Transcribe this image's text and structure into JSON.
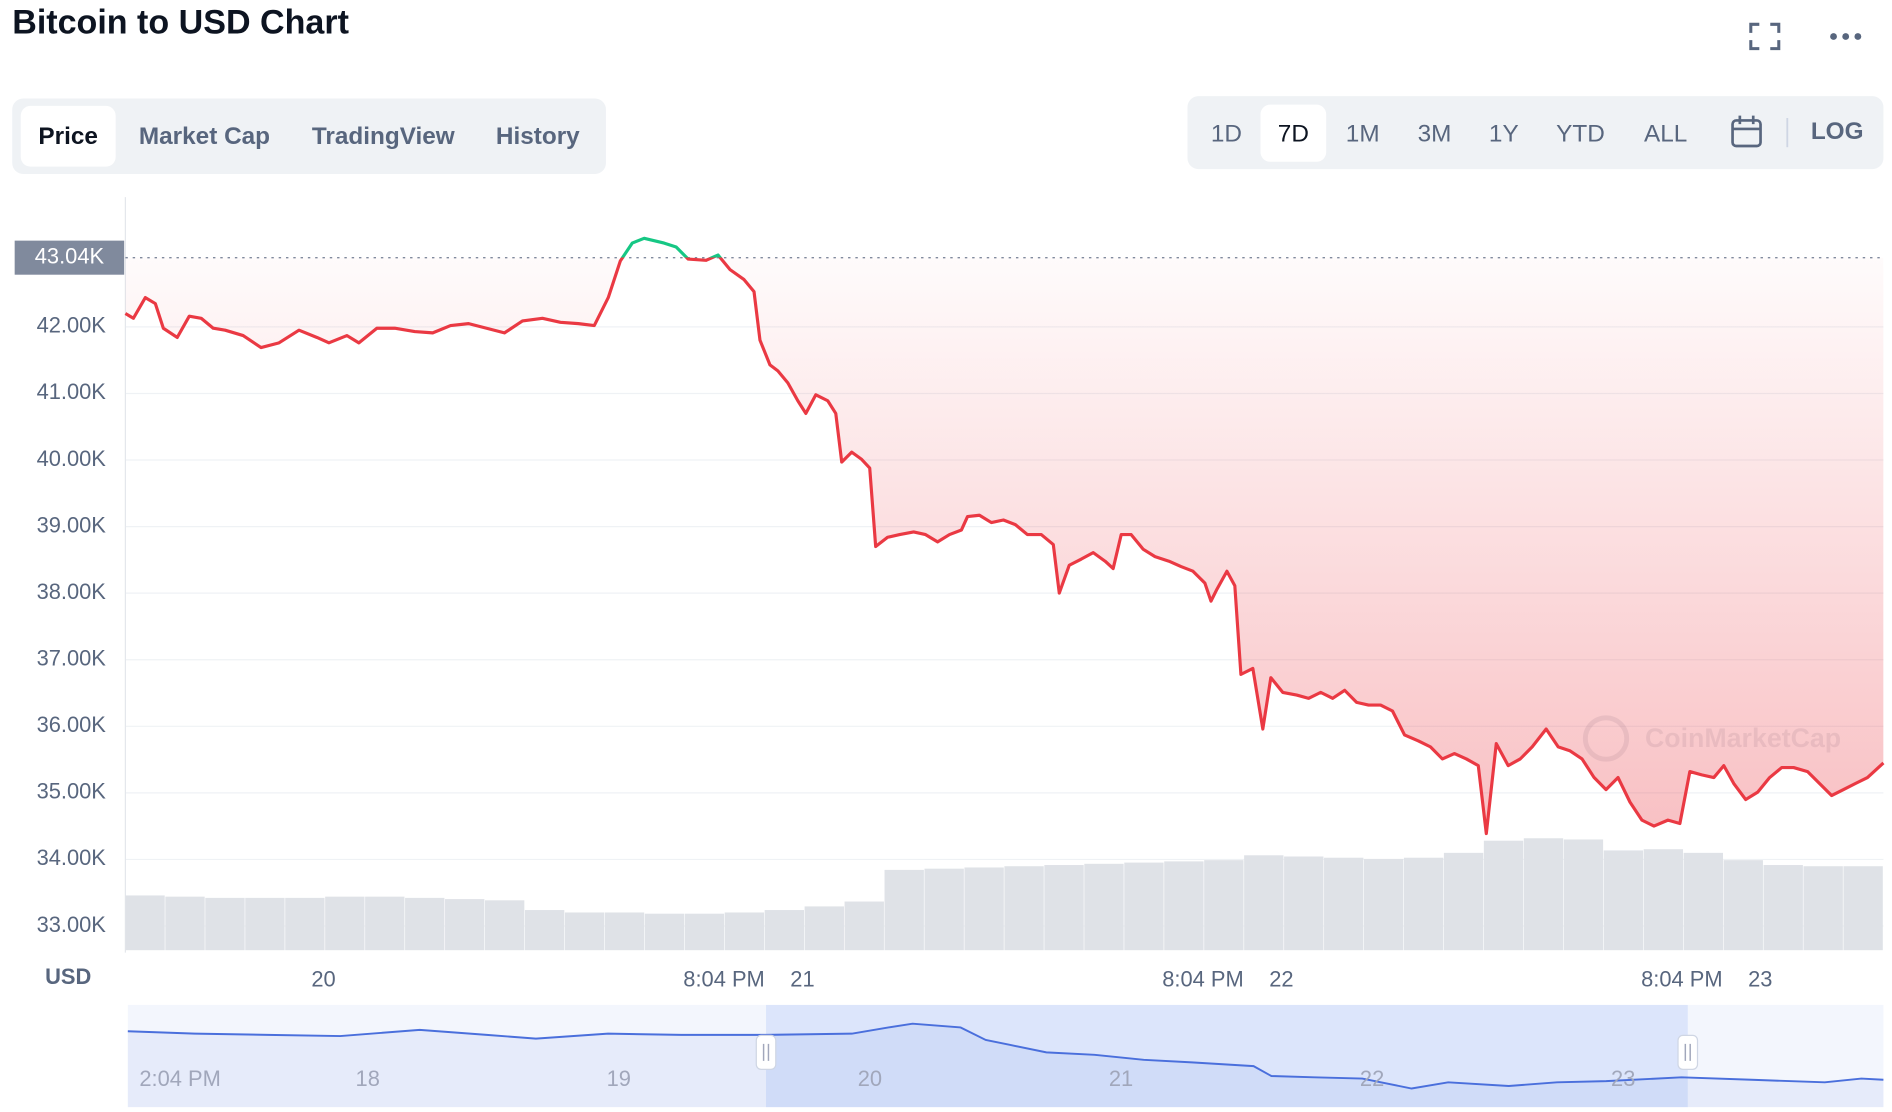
{
  "header": {
    "title": "Bitcoin to USD Chart"
  },
  "tabs": [
    {
      "label": "Price",
      "selected": true
    },
    {
      "label": "Market Cap",
      "selected": false
    },
    {
      "label": "TradingView",
      "selected": false
    },
    {
      "label": "History",
      "selected": false
    }
  ],
  "range_controls": {
    "buttons": [
      {
        "label": "1D",
        "selected": false
      },
      {
        "label": "7D",
        "selected": true
      },
      {
        "label": "1M",
        "selected": false
      },
      {
        "label": "3M",
        "selected": false
      },
      {
        "label": "1Y",
        "selected": false
      },
      {
        "label": "YTD",
        "selected": false
      },
      {
        "label": "ALL",
        "selected": false
      }
    ],
    "log": "LOG"
  },
  "chart_data": {
    "type": "line",
    "y_label": "USD",
    "watermark": "CoinMarketCap",
    "xlim": [
      0,
      88.1
    ],
    "xticks": [
      {
        "value": 9.93,
        "label": "20"
      },
      {
        "value": 30,
        "label": "8:04 PM"
      },
      {
        "value": 33.93,
        "label": "21"
      },
      {
        "value": 54,
        "label": "8:04 PM"
      },
      {
        "value": 57.93,
        "label": "22"
      },
      {
        "value": 78,
        "label": "8:04 PM"
      },
      {
        "value": 81.93,
        "label": "23"
      }
    ],
    "ylim": [
      32600,
      43950
    ],
    "yticks": [
      {
        "value": 33000,
        "label": "33.00K"
      },
      {
        "value": 34000,
        "label": "34.00K"
      },
      {
        "value": 35000,
        "label": "35.00K"
      },
      {
        "value": 36000,
        "label": "36.00K"
      },
      {
        "value": 37000,
        "label": "37.00K"
      },
      {
        "value": 38000,
        "label": "38.00K"
      },
      {
        "value": 39000,
        "label": "39.00K"
      },
      {
        "value": 40000,
        "label": "40.00K"
      },
      {
        "value": 41000,
        "label": "41.00K"
      },
      {
        "value": 42000,
        "label": "42.00K"
      }
    ],
    "grid": true,
    "reference": {
      "value": 43040,
      "label": "43.04K"
    },
    "above_color": "#16c784",
    "series": [
      {
        "color": "#ea3943",
        "x": [
          0.0,
          0.4,
          1.0,
          1.5,
          1.9,
          2.6,
          3.2,
          3.8,
          4.4,
          5.0,
          5.9,
          6.8,
          7.7,
          8.7,
          9.6,
          10.2,
          11.1,
          11.7,
          12.6,
          13.5,
          14.5,
          15.4,
          16.3,
          17.2,
          18.1,
          19.0,
          19.9,
          20.9,
          21.8,
          22.7,
          23.5,
          24.2,
          24.8,
          25.4,
          26.0,
          27.0,
          27.6,
          28.2,
          29.1,
          29.7,
          30.3,
          31.0,
          31.5,
          31.8,
          32.3,
          32.7,
          33.2,
          33.7,
          34.1,
          34.6,
          35.2,
          35.6,
          35.9,
          36.4,
          36.9,
          37.3,
          37.6,
          38.2,
          38.8,
          39.5,
          40.1,
          40.7,
          41.3,
          41.9,
          42.2,
          42.8,
          43.4,
          44.0,
          44.6,
          45.2,
          45.9,
          46.5,
          46.8,
          47.3,
          47.9,
          48.5,
          49.1,
          49.5,
          49.9,
          50.4,
          51.0,
          51.6,
          52.3,
          52.9,
          53.5,
          54.1,
          54.4,
          54.7,
          55.2,
          55.6,
          55.9,
          56.5,
          57.0,
          57.4,
          58.0,
          58.7,
          59.3,
          59.9,
          60.5,
          61.1,
          61.7,
          62.3,
          62.9,
          63.5,
          64.1,
          64.8,
          65.4,
          66.0,
          66.6,
          67.2,
          67.8,
          68.2,
          68.7,
          69.3,
          69.9,
          70.5,
          71.2,
          71.8,
          72.4,
          73.0,
          73.6,
          74.2,
          74.8,
          75.4,
          76.0,
          76.6,
          77.3,
          77.9,
          78.4,
          79.0,
          79.6,
          80.1,
          80.6,
          81.2,
          81.8,
          82.4,
          83.0,
          83.6,
          84.3,
          84.9,
          85.5,
          86.1,
          86.7,
          87.3,
          88.1
        ],
        "values": [
          42200,
          42130,
          42440,
          42350,
          41980,
          41840,
          42160,
          42130,
          41980,
          41950,
          41870,
          41690,
          41760,
          41950,
          41840,
          41760,
          41870,
          41760,
          41980,
          41980,
          41930,
          41910,
          42020,
          42050,
          41980,
          41910,
          42090,
          42130,
          42070,
          42050,
          42020,
          42440,
          42990,
          43260,
          43330,
          43260,
          43200,
          43020,
          43000,
          43080,
          42860,
          42710,
          42530,
          41800,
          41430,
          41340,
          41160,
          40890,
          40700,
          40980,
          40890,
          40700,
          39970,
          40120,
          40010,
          39880,
          38700,
          38840,
          38880,
          38920,
          38880,
          38770,
          38880,
          38950,
          39150,
          39170,
          39060,
          39100,
          39030,
          38880,
          38880,
          38730,
          38000,
          38420,
          38510,
          38610,
          38480,
          38370,
          38880,
          38880,
          38660,
          38550,
          38480,
          38400,
          38330,
          38150,
          37880,
          38060,
          38330,
          38110,
          36780,
          36870,
          35960,
          36730,
          36510,
          36470,
          36420,
          36510,
          36420,
          36540,
          36360,
          36320,
          36320,
          36230,
          35870,
          35780,
          35690,
          35510,
          35590,
          35510,
          35410,
          34390,
          35740,
          35410,
          35510,
          35690,
          35960,
          35690,
          35630,
          35510,
          35230,
          35050,
          35230,
          34860,
          34590,
          34500,
          34590,
          34540,
          35320,
          35270,
          35230,
          35410,
          35140,
          34900,
          35010,
          35230,
          35380,
          35380,
          35320,
          35140,
          34960,
          35050,
          35140,
          35230,
          35450
        ]
      }
    ],
    "volume": {
      "color": "#dfe2e7",
      "values": [
        45,
        44,
        43,
        43,
        43,
        44,
        44,
        43,
        42,
        41,
        33,
        31,
        31,
        30,
        30,
        31,
        33,
        36,
        40,
        66,
        67,
        68,
        69,
        70,
        71,
        72,
        73,
        74,
        78,
        77,
        76,
        75,
        76,
        80,
        90,
        92,
        91,
        82,
        83,
        80,
        74,
        70,
        69,
        69
      ]
    },
    "navigator": {
      "color": "#4a6fdc",
      "xlim": [
        -61,
        106.8
      ],
      "ylim": [
        33280,
        45900
      ],
      "xticks": [
        {
          "value": -56,
          "label": "2:04 PM"
        },
        {
          "value": -38.07,
          "label": "18"
        },
        {
          "value": -14.07,
          "label": "19"
        },
        {
          "value": 9.93,
          "label": "20"
        },
        {
          "value": 33.93,
          "label": "21"
        },
        {
          "value": 57.93,
          "label": "22"
        },
        {
          "value": 81.93,
          "label": "23"
        }
      ],
      "x": [
        -61.0,
        -54.6,
        -47.6,
        -40.7,
        -33.1,
        -26.7,
        -22.0,
        -15.1,
        -8.1,
        0.0,
        8.2,
        11.7,
        14.0,
        18.6,
        21.0,
        23.3,
        26.8,
        31.4,
        36.1,
        40.7,
        46.6,
        48.3,
        52.4,
        57.0,
        61.7,
        65.2,
        71.0,
        75.6,
        80.3,
        87.5,
        94.2,
        101.2,
        104.7,
        106.8
      ],
      "values": [
        42660,
        42350,
        42200,
        42050,
        42820,
        42200,
        41740,
        42350,
        42200,
        42200,
        42350,
        43120,
        43590,
        43120,
        41580,
        40970,
        40040,
        39740,
        39120,
        38810,
        38350,
        37120,
        36960,
        36810,
        35580,
        36350,
        35890,
        36350,
        36500,
        36960,
        36660,
        36350,
        36810,
        36660
      ]
    }
  }
}
